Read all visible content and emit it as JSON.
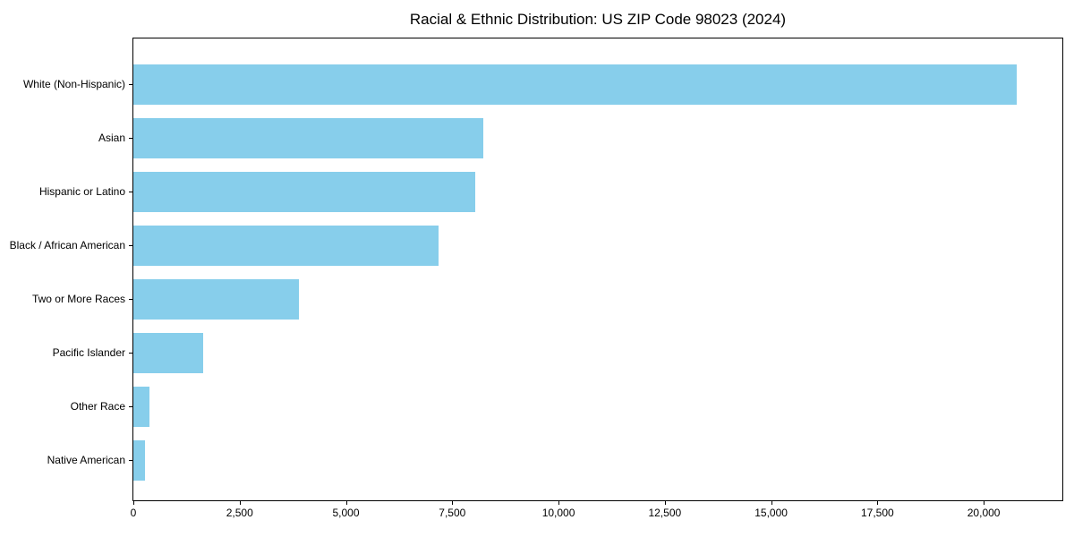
{
  "title": "Racial & Ethnic Distribution: US ZIP Code 98023 (2024)",
  "chart_data": {
    "type": "bar",
    "orientation": "horizontal",
    "title": "Racial & Ethnic Distribution: US ZIP Code 98023 (2024)",
    "xlabel": "",
    "ylabel": "",
    "categories": [
      "White (Non-Hispanic)",
      "Asian",
      "Hispanic or Latino",
      "Black / African American",
      "Two or More Races",
      "Pacific Islander",
      "Other Race",
      "Native American"
    ],
    "values": [
      20780,
      8230,
      8040,
      7180,
      3890,
      1640,
      370,
      280
    ],
    "xlim": [
      0,
      21850
    ],
    "xticks": [
      0,
      2500,
      5000,
      7500,
      10000,
      12500,
      15000,
      17500,
      20000
    ],
    "xtick_labels": [
      "0",
      "2,500",
      "5,000",
      "7,500",
      "10,000",
      "12,500",
      "15,000",
      "17,500",
      "20,000"
    ],
    "bar_color": "#87CEEB",
    "text_color": "#000000",
    "grid": false,
    "legend": null
  }
}
